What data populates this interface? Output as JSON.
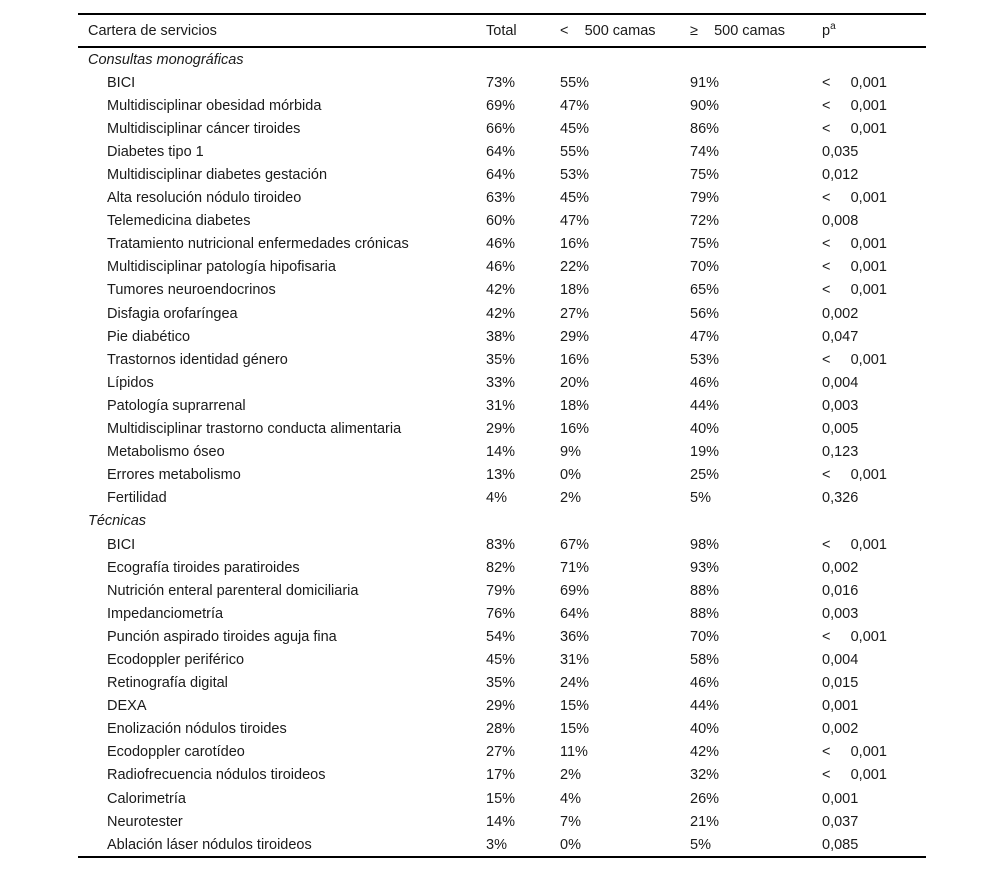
{
  "page": {
    "background": "#ffffff",
    "text_color": "#1a1a1a",
    "rule_color": "#000000"
  },
  "table": {
    "headers": {
      "name": "Cartera de servicios",
      "total": "Total",
      "lt500": "<    500 camas",
      "ge500": "≥    500 camas",
      "p": "p",
      "p_sup": "a"
    },
    "sections": [
      {
        "title": "Consultas monográficas",
        "rows": [
          {
            "name": "BICI",
            "total": "73%",
            "lt500": "55%",
            "ge500": "91%",
            "p": "<     0,001"
          },
          {
            "name": "Multidisciplinar obesidad mórbida",
            "total": "69%",
            "lt500": "47%",
            "ge500": "90%",
            "p": "<     0,001"
          },
          {
            "name": "Multidisciplinar cáncer tiroides",
            "total": "66%",
            "lt500": "45%",
            "ge500": "86%",
            "p": "<     0,001"
          },
          {
            "name": "Diabetes tipo 1",
            "total": "64%",
            "lt500": "55%",
            "ge500": "74%",
            "p": "0,035"
          },
          {
            "name": "Multidisciplinar diabetes gestación",
            "total": "64%",
            "lt500": "53%",
            "ge500": "75%",
            "p": "0,012"
          },
          {
            "name": "Alta resolución nódulo tiroideo",
            "total": "63%",
            "lt500": "45%",
            "ge500": "79%",
            "p": "<     0,001"
          },
          {
            "name": "Telemedicina diabetes",
            "total": "60%",
            "lt500": "47%",
            "ge500": "72%",
            "p": "0,008"
          },
          {
            "name": "Tratamiento nutricional enfermedades crónicas",
            "total": "46%",
            "lt500": "16%",
            "ge500": "75%",
            "p": "<     0,001"
          },
          {
            "name": "Multidisciplinar patología hipofisaria",
            "total": "46%",
            "lt500": "22%",
            "ge500": "70%",
            "p": "<     0,001"
          },
          {
            "name": "Tumores neuroendocrinos",
            "total": "42%",
            "lt500": "18%",
            "ge500": "65%",
            "p": "<     0,001"
          },
          {
            "name": "Disfagia orofaríngea",
            "total": "42%",
            "lt500": "27%",
            "ge500": "56%",
            "p": "0,002"
          },
          {
            "name": "Pie diabético",
            "total": "38%",
            "lt500": "29%",
            "ge500": "47%",
            "p": "0,047"
          },
          {
            "name": "Trastornos identidad género",
            "total": "35%",
            "lt500": "16%",
            "ge500": "53%",
            "p": "<     0,001"
          },
          {
            "name": "Lípidos",
            "total": "33%",
            "lt500": "20%",
            "ge500": "46%",
            "p": "0,004"
          },
          {
            "name": "Patología suprarrenal",
            "total": "31%",
            "lt500": "18%",
            "ge500": "44%",
            "p": "0,003"
          },
          {
            "name": "Multidisciplinar trastorno conducta alimentaria",
            "total": "29%",
            "lt500": "16%",
            "ge500": "40%",
            "p": "0,005"
          },
          {
            "name": "Metabolismo óseo",
            "total": "14%",
            "lt500": "9%",
            "ge500": "19%",
            "p": "0,123"
          },
          {
            "name": "Errores metabolismo",
            "total": "13%",
            "lt500": "0%",
            "ge500": "25%",
            "p": "<     0,001"
          },
          {
            "name": "Fertilidad",
            "total": "4%",
            "lt500": "2%",
            "ge500": "5%",
            "p": "0,326"
          }
        ]
      },
      {
        "title": "Técnicas",
        "rows": [
          {
            "name": "BICI",
            "total": "83%",
            "lt500": "67%",
            "ge500": "98%",
            "p": "<     0,001"
          },
          {
            "name": "Ecografía tiroides paratiroides",
            "total": "82%",
            "lt500": "71%",
            "ge500": "93%",
            "p": "0,002"
          },
          {
            "name": "Nutrición enteral parenteral domiciliaria",
            "total": "79%",
            "lt500": "69%",
            "ge500": "88%",
            "p": "0,016"
          },
          {
            "name": "Impedanciometría",
            "total": "76%",
            "lt500": "64%",
            "ge500": "88%",
            "p": "0,003"
          },
          {
            "name": "Punción aspirado tiroides aguja fina",
            "total": "54%",
            "lt500": "36%",
            "ge500": "70%",
            "p": "<     0,001"
          },
          {
            "name": "Ecodoppler periférico",
            "total": "45%",
            "lt500": "31%",
            "ge500": "58%",
            "p": "0,004"
          },
          {
            "name": "Retinografía digital",
            "total": "35%",
            "lt500": "24%",
            "ge500": "46%",
            "p": "0,015"
          },
          {
            "name": "DEXA",
            "total": "29%",
            "lt500": "15%",
            "ge500": "44%",
            "p": "0,001"
          },
          {
            "name": "Enolización nódulos tiroides",
            "total": "28%",
            "lt500": "15%",
            "ge500": "40%",
            "p": "0,002"
          },
          {
            "name": "Ecodoppler carotídeo",
            "total": "27%",
            "lt500": "11%",
            "ge500": "42%",
            "p": "<     0,001"
          },
          {
            "name": "Radiofrecuencia nódulos tiroideos",
            "total": "17%",
            "lt500": "2%",
            "ge500": "32%",
            "p": "<     0,001"
          },
          {
            "name": "Calorimetría",
            "total": "15%",
            "lt500": "4%",
            "ge500": "26%",
            "p": "0,001"
          },
          {
            "name": "Neurotester",
            "total": "14%",
            "lt500": "7%",
            "ge500": "21%",
            "p": "0,037"
          },
          {
            "name": "Ablación láser nódulos tiroideos",
            "total": "3%",
            "lt500": "0%",
            "ge500": "5%",
            "p": "0,085"
          }
        ]
      }
    ]
  }
}
